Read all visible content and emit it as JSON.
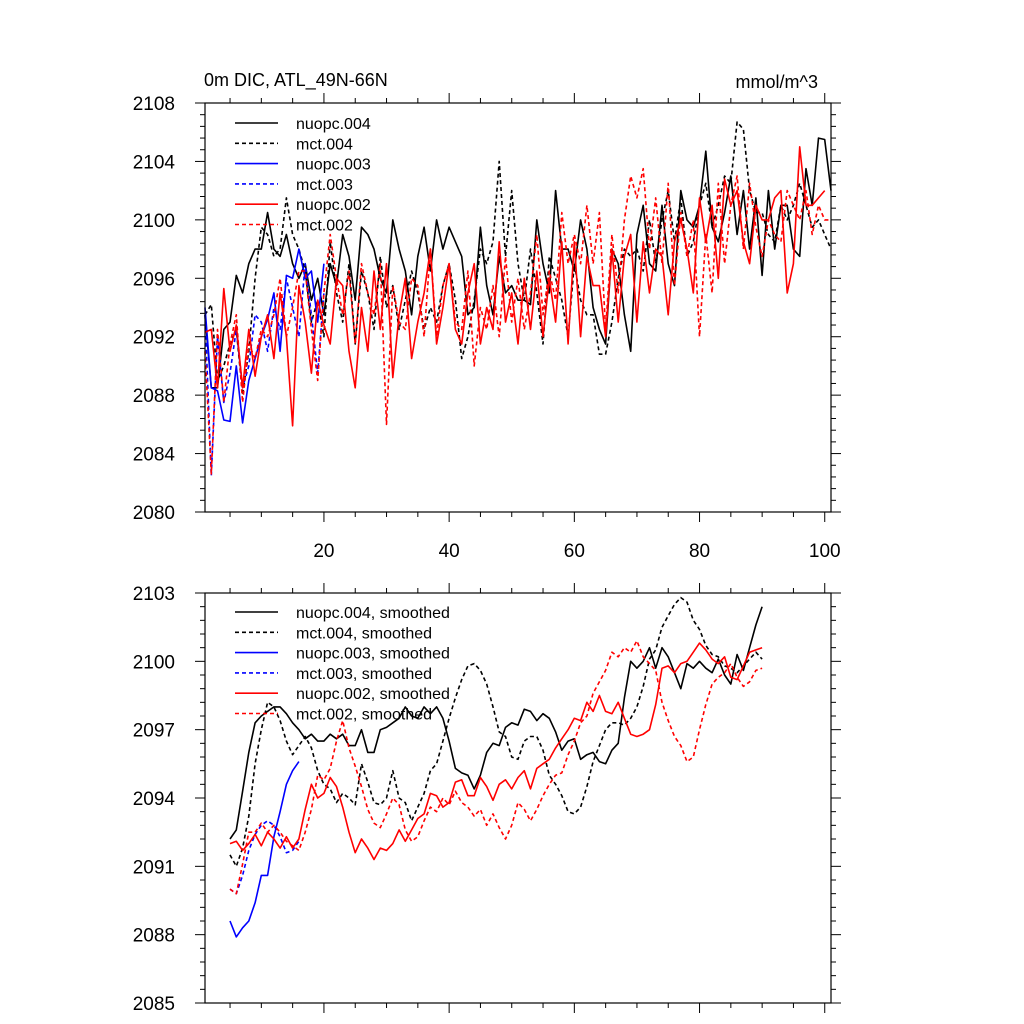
{
  "colors": {
    "nuopc.004": "#000000",
    "mct.004": "#000000",
    "nuopc.003": "#0000ff",
    "mct.003": "#0000ff",
    "nuopc.002": "#ff0000",
    "mct.002": "#ff0000"
  },
  "chart_data": [
    {
      "type": "line",
      "title": "0m DIC, ATL_49N-66N",
      "units": "mmol/m^3",
      "xlim": [
        1,
        101
      ],
      "ylim": [
        2080,
        2108
      ],
      "xticks": [
        20,
        40,
        60,
        80,
        100
      ],
      "xtick_labels": [
        "20",
        "40",
        "60",
        "80",
        "100"
      ],
      "yticks": [
        2080,
        2084,
        2088,
        2092,
        2096,
        2100,
        2104,
        2108
      ],
      "ytick_labels": [
        "2080",
        "2084",
        "2088",
        "2092",
        "2096",
        "2100",
        "2104",
        "2108"
      ],
      "legend_position": "top-left",
      "series": [
        {
          "name": "nuopc.004",
          "style": "solid",
          "start": 1,
          "values": [
            2093.5,
            2088.5,
            2088.5,
            2092.5,
            2093,
            2096.2,
            2095,
            2097,
            2098,
            2098,
            2100.5,
            2098,
            2097.5,
            2099,
            2097,
            2096,
            2097,
            2094.5,
            2096,
            2093.5,
            2097,
            2095.5,
            2099,
            2097.5,
            2094.5,
            2099.5,
            2099,
            2098,
            2096,
            2095,
            2100,
            2098,
            2096.5,
            2093.5,
            2097.5,
            2099.5,
            2096.5,
            2100,
            2098,
            2099.5,
            2098.5,
            2097.5,
            2093.5,
            2094,
            2099.5,
            2095.5,
            2093.5,
            2097.5,
            2095,
            2095.5,
            2094.5,
            2094.5,
            2094.2,
            2100,
            2097,
            2095,
            2102,
            2098,
            2098,
            2096.5,
            2100,
            2098,
            2094,
            2092.5,
            2091.5,
            2098,
            2097,
            2093.5,
            2091,
            2099,
            2101,
            2097,
            2096.5,
            2101,
            2097,
            2095.5,
            2102,
            2100,
            2099.5,
            2101,
            2104.7,
            2099.5,
            2098.5,
            2100.5,
            2103,
            2099,
            2102,
            2098,
            2101.5,
            2096.2,
            2102,
            2098,
            2101,
            2101,
            2098,
            2097.5,
            2103.5,
            2101,
            2105.6,
            2105.5,
            2102
          ]
        },
        {
          "name": "mct.004",
          "style": "dashed",
          "start": 1,
          "values": [
            2093.5,
            2094.2,
            2089,
            2090,
            2091.5,
            2092.5,
            2088,
            2091,
            2096,
            2099.5,
            2099,
            2097.5,
            2098,
            2101.5,
            2099,
            2098,
            2096.5,
            2093,
            2094.5,
            2092,
            2098.5,
            2095,
            2093,
            2097,
            2091.5,
            2096.5,
            2095,
            2092.5,
            2097.5,
            2094,
            2095.5,
            2092.5,
            2094.5,
            2096.5,
            2095,
            2092.5,
            2094,
            2093,
            2095.5,
            2097,
            2094.5,
            2090.5,
            2092,
            2094.5,
            2098,
            2097,
            2098.5,
            2104,
            2097.5,
            2102,
            2097,
            2094.5,
            2098,
            2095,
            2091.5,
            2097.5,
            2096,
            2094.5,
            2092,
            2097,
            2094.5,
            2093.5,
            2093.5,
            2090.8,
            2090.8,
            2093,
            2096,
            2098,
            2097.5,
            2098,
            2096.5,
            2100,
            2097,
            2100,
            2102,
            2098.5,
            2101.5,
            2097.5,
            2098.5,
            2101,
            2102.5,
            2099.5,
            2101,
            2103,
            2102.5,
            2106.7,
            2106.2,
            2102,
            2100.5,
            2100.5,
            2099,
            2098.5,
            2101,
            2100,
            2101,
            2102.5,
            2101,
            2099.5,
            2100,
            2099,
            2098
          ]
        },
        {
          "name": "nuopc.003",
          "style": "solid",
          "start": 1,
          "values": [
            2094,
            2088.5,
            2088.3,
            2086.3,
            2086.2,
            2090,
            2086.1,
            2089,
            2090.5,
            2092,
            2093.2,
            2095,
            2091,
            2096.2,
            2096,
            2098,
            2096,
            2096.5,
            2093,
            2097
          ]
        },
        {
          "name": "mct.003",
          "style": "dashed",
          "start": 1,
          "values": [
            2093.5,
            2082.5,
            2092,
            2087.5,
            2089.5,
            2092.5,
            2088.5,
            2090,
            2093.5,
            2093,
            2091,
            2094,
            2092.5,
            2096,
            2094,
            2092,
            2097,
            2093.5,
            2089.5,
            2095
          ]
        },
        {
          "name": "nuopc.002",
          "style": "solid",
          "start": 1,
          "values": [
            2092.3,
            2092.5,
            2088.5,
            2095.3,
            2091,
            2092.8,
            2088.5,
            2092.5,
            2089.3,
            2092,
            2093.5,
            2090.5,
            2095,
            2092,
            2085.9,
            2095.5,
            2093,
            2089.5,
            2094.5,
            2092.8,
            2091.5,
            2096,
            2095.5,
            2091,
            2088.5,
            2094,
            2091,
            2096.5,
            2092.5,
            2097,
            2089.2,
            2093.5,
            2096,
            2090.5,
            2093,
            2095,
            2098,
            2091.5,
            2094,
            2097,
            2092.5,
            2091.5,
            2095,
            2097,
            2091.5,
            2094,
            2092.5,
            2098.5,
            2093,
            2095,
            2091.5,
            2096,
            2092.5,
            2096.5,
            2092,
            2096,
            2093,
            2098.5,
            2091.5,
            2098.5,
            2092,
            2097.5,
            2095.5,
            2095.5,
            2092,
            2098,
            2093,
            2097.5,
            2099,
            2093,
            2098.5,
            2095,
            2098,
            2097.5,
            2093.5,
            2098.5,
            2100,
            2098,
            2095,
            2101.5,
            2098.5,
            2101,
            2096,
            2102.8,
            2101,
            2102,
            2098.5,
            2097,
            2101,
            2100,
            2100,
            2101.5,
            2102,
            2095,
            2097,
            2105,
            2101,
            2101,
            2101.5,
            2102
          ]
        },
        {
          "name": "mct.002",
          "style": "dashed",
          "start": 1,
          "values": [
            2091,
            2082.6,
            2092.5,
            2087.5,
            2091.5,
            2093.5,
            2087.5,
            2091.5,
            2090.5,
            2092.5,
            2092,
            2093.5,
            2096,
            2092,
            2094,
            2096.5,
            2096.5,
            2092.5,
            2089,
            2095,
            2099,
            2096,
            2093.5,
            2096.5,
            2091.5,
            2097,
            2095,
            2093.5,
            2097,
            2086,
            2095.5,
            2093,
            2092.5,
            2096,
            2095.5,
            2092,
            2098,
            2092,
            2095.5,
            2097,
            2093,
            2092.5,
            2096.5,
            2090,
            2094,
            2092.5,
            2095.5,
            2092,
            2097.5,
            2093,
            2096,
            2092.5,
            2095,
            2099,
            2093.5,
            2096.5,
            2094.5,
            2100.5,
            2097,
            2099,
            2097,
            2101,
            2097,
            2100.5,
            2092.5,
            2099,
            2095,
            2100,
            2103,
            2101.5,
            2103.5,
            2098,
            2101.5,
            2097,
            2102.5,
            2095.5,
            2100.5,
            2097.5,
            2100,
            2092,
            2099,
            2095,
            2102.5,
            2097,
            2101,
            2103,
            2098,
            2102.5,
            2099.5,
            2097.5,
            2100,
            2099,
            2098.5,
            2102,
            2101,
            2100,
            2102,
            2099,
            2101,
            2100,
            2100
          ]
        }
      ]
    },
    {
      "type": "line",
      "title": "",
      "units": "",
      "xlim": [
        1,
        101
      ],
      "ylim": [
        2085,
        2103
      ],
      "xticks": [
        20,
        40,
        60,
        80,
        100
      ],
      "xtick_labels": [],
      "yticks": [
        2085,
        2088,
        2091,
        2094,
        2097,
        2100,
        2103
      ],
      "ytick_labels": [
        "2085",
        "2088",
        "2091",
        "2094",
        "2097",
        "2100",
        "2103"
      ],
      "legend_position": "top-left",
      "series": [
        {
          "name": "nuopc.004, smoothed",
          "style": "solid",
          "start": 5,
          "values": [
            2092.2,
            2092.6,
            2094.3,
            2096,
            2097.3,
            2097.6,
            2097.8,
            2098,
            2098,
            2097.7,
            2097.3,
            2097,
            2096.6,
            2096.8,
            2096.5,
            2096.5,
            2096.8,
            2096.6,
            2096.8,
            2096.3,
            2096.3,
            2097,
            2096,
            2096,
            2097,
            2097.1,
            2097.3,
            2097.5,
            2098,
            2097.6,
            2097.5,
            2098,
            2097.7,
            2098,
            2097.5,
            2096.5,
            2095.3,
            2095.1,
            2095,
            2094.4,
            2095,
            2096,
            2096.4,
            2096.3,
            2097.1,
            2097.3,
            2097.2,
            2097.9,
            2097.8,
            2097.4,
            2097.7,
            2097.5,
            2096.9,
            2096.1,
            2096.5,
            2096.6,
            2095.7,
            2095.9,
            2096,
            2095.6,
            2095.5,
            2096.1,
            2096.4,
            2098.4,
            2100,
            2099.7,
            2100,
            2100.6,
            2099.7,
            2100.6,
            2100.2,
            2099.5,
            2098.8,
            2099.9,
            2099.7,
            2100,
            2099.7,
            2099.5,
            2100.1,
            2099.4,
            2099,
            2100.3,
            2099.6,
            2100.6,
            2101.6,
            2102.4
          ]
        },
        {
          "name": "mct.004, smoothed",
          "style": "dashed",
          "start": 5,
          "values": [
            2091.5,
            2091,
            2091.8,
            2093.2,
            2095.5,
            2097,
            2098.2,
            2098,
            2097.4,
            2096.5,
            2095.9,
            2096.3,
            2096.7,
            2096.2,
            2095.2,
            2094.6,
            2094.4,
            2093.8,
            2094.2,
            2094,
            2093.7,
            2095.5,
            2094.7,
            2093.8,
            2093.7,
            2094,
            2095.2,
            2094,
            2093.8,
            2093,
            2093.6,
            2094.2,
            2095.2,
            2095.5,
            2096.5,
            2097.5,
            2098.4,
            2099.2,
            2099.8,
            2099.9,
            2099.6,
            2099,
            2098,
            2096.9,
            2096.7,
            2095.8,
            2095.7,
            2096.5,
            2096.7,
            2096.7,
            2096.1,
            2095,
            2094.6,
            2094.1,
            2093.4,
            2093.3,
            2093.6,
            2094.5,
            2095.6,
            2096.3,
            2097,
            2097.3,
            2097.3,
            2097.2,
            2097.5,
            2098,
            2098.9,
            2100.1,
            2100.5,
            2101.5,
            2102,
            2102.5,
            2102.8,
            2102.6,
            2101.8,
            2101.4,
            2100.7,
            2100.3,
            2100.2,
            2099.8,
            2099.7,
            2099.5,
            2099.8,
            2100.1,
            2100.4,
            2100.1
          ]
        },
        {
          "name": "nuopc.003, smoothed",
          "style": "solid",
          "start": 5,
          "values": [
            2088.6,
            2087.9,
            2088.3,
            2088.6,
            2089.4,
            2090.6,
            2090.6,
            2092.3,
            2093.4,
            2094.6,
            2095.2,
            2095.6
          ]
        },
        {
          "name": "mct.003, smoothed",
          "style": "dashed",
          "start": 5,
          "values": [
            2090,
            2089.8,
            2090.6,
            2091.7,
            2092.4,
            2092.8,
            2093,
            2092.8,
            2092.3,
            2091.6,
            2091.7,
            2092.1
          ]
        },
        {
          "name": "nuopc.002, smoothed",
          "style": "solid",
          "start": 5,
          "values": [
            2092,
            2092.1,
            2091.7,
            2092,
            2092.4,
            2091.9,
            2092.5,
            2092.2,
            2091.8,
            2092.3,
            2091.8,
            2092.2,
            2093.5,
            2094.6,
            2094,
            2094.2,
            2094.9,
            2094.5,
            2093.6,
            2092.5,
            2091.6,
            2092.2,
            2091.8,
            2091.3,
            2091.8,
            2091.7,
            2092,
            2092.6,
            2092.1,
            2092.6,
            2093.1,
            2093.3,
            2094.2,
            2094.1,
            2093.6,
            2093.8,
            2094.7,
            2094.8,
            2094.1,
            2094.1,
            2094.9,
            2094.5,
            2093.9,
            2094.6,
            2094.8,
            2094.4,
            2094.9,
            2095.2,
            2094.4,
            2095.3,
            2095.5,
            2095.7,
            2096.2,
            2096.6,
            2097,
            2097.5,
            2097.4,
            2098.2,
            2097.8,
            2098.5,
            2097.8,
            2097.7,
            2098.2,
            2097.5,
            2096.8,
            2096.7,
            2096.8,
            2097,
            2098.1,
            2099.7,
            2099.8,
            2099.5,
            2099.9,
            2100,
            2100.4,
            2100.8,
            2100.5,
            2100.1,
            2099.9,
            2100.2,
            2099.3,
            2099.2,
            2099.8,
            2100.4,
            2100.5,
            2100.6
          ]
        },
        {
          "name": "mct.002, smoothed",
          "style": "dashed",
          "start": 5,
          "values": [
            2090,
            2089.8,
            2091.1,
            2092.5,
            2092.5,
            2092.9,
            2092.5,
            2092.8,
            2092.5,
            2092.1,
            2091.9,
            2091.7,
            2092.5,
            2093.5,
            2095,
            2094.8,
            2095.3,
            2096.5,
            2097.4,
            2096.2,
            2095.4,
            2094.5,
            2093.5,
            2092.9,
            2092.7,
            2093.3,
            2094,
            2093.7,
            2092.6,
            2092.1,
            2092.3,
            2093,
            2093.6,
            2093.4,
            2094,
            2093.7,
            2094.3,
            2093.8,
            2093.6,
            2093.2,
            2093.5,
            2092.8,
            2093.3,
            2092.7,
            2092.2,
            2092.8,
            2093.8,
            2093.5,
            2093,
            2093.5,
            2094.1,
            2094.6,
            2095,
            2095.1,
            2095.9,
            2096.5,
            2097.3,
            2097.6,
            2098.6,
            2099.1,
            2099.6,
            2100.4,
            2100.2,
            2100.6,
            2100.4,
            2100.9,
            2100.2,
            2099.9,
            2099.6,
            2098.2,
            2097.4,
            2096.7,
            2096.3,
            2095.6,
            2095.8,
            2097,
            2098.1,
            2099,
            2099.3,
            2099.5,
            2099.9,
            2099.3,
            2098.9,
            2099.1,
            2099.6,
            2099.7
          ]
        }
      ]
    }
  ]
}
